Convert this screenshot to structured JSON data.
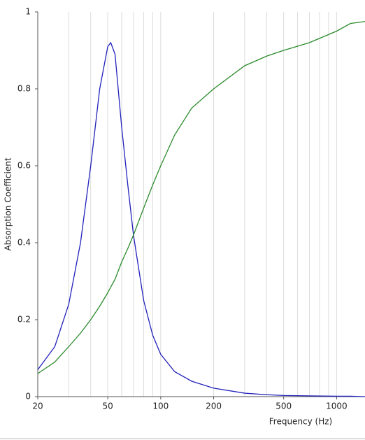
{
  "chart_data": {
    "type": "line",
    "log_x": true,
    "xlabel": "Frequency (Hz)",
    "ylabel": "Absorption Coefficient",
    "x": [
      20,
      25,
      30,
      35,
      40,
      45,
      50,
      52,
      55,
      60,
      65,
      70,
      80,
      90,
      100,
      120,
      150,
      200,
      300,
      400,
      500,
      700,
      1000,
      1200,
      1450
    ],
    "series": [
      {
        "color": "#2222bb",
        "values": [
          0.07,
          0.13,
          0.24,
          0.4,
          0.6,
          0.8,
          0.91,
          0.92,
          0.89,
          0.7,
          0.55,
          0.42,
          0.25,
          0.16,
          0.11,
          0.065,
          0.04,
          0.022,
          0.009,
          0.005,
          0.003,
          0.002,
          0.001,
          0.001,
          0
        ]
      },
      {
        "color": "#2a8a2a",
        "values": [
          0.06,
          0.09,
          0.13,
          0.165,
          0.2,
          0.235,
          0.27,
          0.285,
          0.305,
          0.35,
          0.385,
          0.42,
          0.49,
          0.55,
          0.6,
          0.68,
          0.75,
          0.8,
          0.86,
          0.885,
          0.9,
          0.92,
          0.95,
          0.97,
          0.975
        ]
      }
    ],
    "xlim": [
      20,
      1450
    ],
    "ylim": [
      0,
      1
    ],
    "xticks": [
      20,
      50,
      100,
      200,
      500,
      1000
    ],
    "xminor_ticks": [
      30,
      40,
      60,
      70,
      80,
      90,
      300,
      400,
      600,
      700,
      800,
      900
    ],
    "yticks": [
      0,
      0.2,
      0.4,
      0.6,
      0.8,
      1
    ],
    "grid": true
  }
}
